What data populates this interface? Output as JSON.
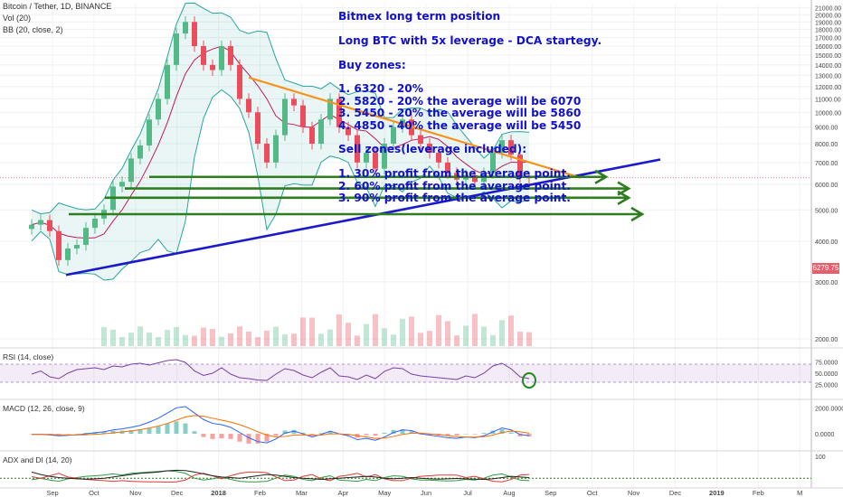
{
  "header": {
    "symbol": "Bitcoin / Tether, 1D, BINANCE",
    "vol": "Vol (20)",
    "bb": "BB (20, close, 2)"
  },
  "annotation": {
    "title": "Bitmex long term position",
    "strategy": "Long BTC with 5x leverage - DCA startegy.",
    "buy_title": "Buy zones:",
    "buy": [
      "1. 6320 - 20%",
      "2. 5820 - 20% the average will be 6070",
      "3. 5450 - 20% the average will be 5860",
      "4. 4850 - 40% the average will be 5450"
    ],
    "sell_title": "Sell zones(leverage included):",
    "sell": [
      "1. 30% profit from the average point.",
      "2. 60% profit from the average point.",
      "3. 90% profit from the average point."
    ]
  },
  "panes": {
    "rsi_title": "RSI (14, close)",
    "macd_title": "MACD (12, 26, close, 9)",
    "adx_title": "ADX and DI (14, 20)"
  },
  "last_price_label": "6279.75",
  "colors": {
    "up": "#53b987",
    "down": "#eb4d5c",
    "bb": "#26a69a",
    "basis": "#c2185b",
    "trend": "#1a1acc",
    "resistance": "#f7931a",
    "zone": "#2e7d1f",
    "rsi": "#7b3fa6",
    "macd": "#2962ff",
    "signal": "#ff6d00"
  },
  "chart_data": {
    "type": "candlestick",
    "price_axis": {
      "ticks": [
        2000,
        3000,
        4000,
        5000,
        6000,
        7000,
        8000,
        9000,
        10000,
        11000,
        12000,
        13000,
        14000,
        15000,
        16000,
        17000,
        18000,
        19000,
        20000,
        21000
      ],
      "tick_labels": [
        "2000.00",
        "3000.00",
        "4000.00",
        "5000.00",
        "6000.00",
        "7000.00",
        "8000.00",
        "9000.00",
        "10000.00",
        "11000.00",
        "12000.00",
        "13000.00",
        "14000.00",
        "15000.00",
        "16000.00",
        "17000.00",
        "18000.00",
        "19000.00",
        "20000.00",
        "21000.00"
      ],
      "scale": "log"
    },
    "time_axis": {
      "labels": [
        "Sep",
        "Oct",
        "Nov",
        "Dec",
        "2018",
        "Feb",
        "Mar",
        "Apr",
        "May",
        "Jun",
        "Jul",
        "Aug",
        "Sep",
        "Oct",
        "Nov",
        "Dec",
        "2019",
        "Feb",
        "M"
      ]
    },
    "closes": [
      4500,
      4650,
      4300,
      3500,
      3800,
      3900,
      4400,
      4700,
      5000,
      5900,
      6100,
      7200,
      7900,
      9500,
      11000,
      14000,
      17500,
      19000,
      16000,
      14000,
      13500,
      16000,
      14000,
      11000,
      10000,
      8000,
      7000,
      8500,
      11000,
      10500,
      9000,
      8000,
      9500,
      11000,
      9000,
      8500,
      7000,
      7500,
      6700,
      8000,
      9000,
      9500,
      8500,
      8000,
      7500,
      7000,
      6500,
      6200,
      6400,
      6100,
      6500,
      7500,
      8200,
      7400,
      6300,
      6280
    ],
    "levels": [
      {
        "name": "zone-6320",
        "value": 6320
      },
      {
        "name": "zone-5820",
        "value": 5820
      },
      {
        "name": "zone-5450",
        "value": 5450
      },
      {
        "name": "zone-4850",
        "value": 4850
      }
    ],
    "last_price": 6279.75,
    "rsi": {
      "ticks": [
        25,
        50,
        75
      ],
      "tick_labels": [
        "25.0000",
        "50.0000",
        "75.0000"
      ],
      "bands": [
        30,
        70
      ],
      "values": [
        48,
        55,
        42,
        38,
        50,
        58,
        60,
        62,
        58,
        66,
        64,
        70,
        72,
        68,
        73,
        78,
        80,
        74,
        55,
        45,
        50,
        62,
        48,
        40,
        38,
        35,
        34,
        48,
        60,
        56,
        46,
        40,
        52,
        62,
        44,
        42,
        36,
        46,
        38,
        54,
        62,
        60,
        48,
        44,
        42,
        40,
        38,
        36,
        44,
        40,
        50,
        66,
        72,
        60,
        42,
        38
      ]
    },
    "macd": {
      "ticks": [
        0,
        2000
      ],
      "tick_labels": [
        "0.0000",
        "2000.0000"
      ],
      "macd": [
        -50,
        -40,
        -80,
        -150,
        -120,
        -80,
        0,
        80,
        150,
        300,
        380,
        500,
        650,
        900,
        1200,
        1600,
        2000,
        2100,
        1600,
        1100,
        800,
        700,
        500,
        100,
        -300,
        -600,
        -700,
        -400,
        50,
        200,
        0,
        -250,
        -50,
        200,
        0,
        -150,
        -450,
        -350,
        -500,
        -250,
        100,
        300,
        250,
        0,
        -100,
        -200,
        -300,
        -350,
        -250,
        -300,
        -150,
        150,
        450,
        300,
        -50,
        -150
      ],
      "signal": [
        -40,
        -40,
        -50,
        -80,
        -90,
        -90,
        -70,
        -40,
        0,
        70,
        140,
        220,
        320,
        450,
        600,
        800,
        1050,
        1300,
        1400,
        1350,
        1200,
        1050,
        900,
        700,
        450,
        150,
        -100,
        -250,
        -200,
        -100,
        -80,
        -120,
        -100,
        0,
        0,
        -50,
        -150,
        -250,
        -350,
        -330,
        -200,
        -50,
        50,
        50,
        0,
        -60,
        -140,
        -220,
        -250,
        -260,
        -220,
        -100,
        100,
        200,
        150,
        50
      ]
    },
    "adx": {
      "ticks": [
        100
      ],
      "tick_labels": [
        "100"
      ],
      "threshold": 20,
      "adx": [
        40,
        32,
        26,
        22,
        20,
        18,
        17,
        18,
        20,
        24,
        28,
        32,
        36,
        38,
        40,
        44,
        46,
        45,
        40,
        34,
        28,
        24,
        22,
        20,
        24,
        28,
        32,
        30,
        26,
        22,
        20,
        18,
        16,
        18,
        20,
        22,
        24,
        26,
        24,
        20,
        18,
        20,
        22,
        20,
        18,
        17,
        18,
        19,
        18,
        17,
        16,
        18,
        22,
        26,
        24,
        22
      ],
      "di_plus": [
        15,
        20,
        14,
        10,
        18,
        22,
        26,
        28,
        30,
        34,
        30,
        36,
        38,
        40,
        42,
        44,
        42,
        36,
        20,
        14,
        18,
        24,
        16,
        10,
        8,
        8,
        10,
        20,
        30,
        26,
        16,
        12,
        22,
        28,
        14,
        12,
        10,
        16,
        12,
        22,
        28,
        26,
        18,
        14,
        14,
        12,
        11,
        12,
        16,
        14,
        20,
        30,
        34,
        24,
        14,
        12
      ],
      "di_minus": [
        25,
        20,
        28,
        36,
        24,
        20,
        16,
        14,
        12,
        10,
        12,
        10,
        9,
        8,
        8,
        7,
        8,
        14,
        30,
        36,
        28,
        18,
        28,
        36,
        40,
        40,
        38,
        24,
        12,
        14,
        26,
        32,
        18,
        12,
        26,
        30,
        36,
        24,
        32,
        18,
        12,
        12,
        20,
        26,
        28,
        30,
        30,
        30,
        22,
        26,
        18,
        10,
        8,
        16,
        30,
        32
      ]
    }
  }
}
